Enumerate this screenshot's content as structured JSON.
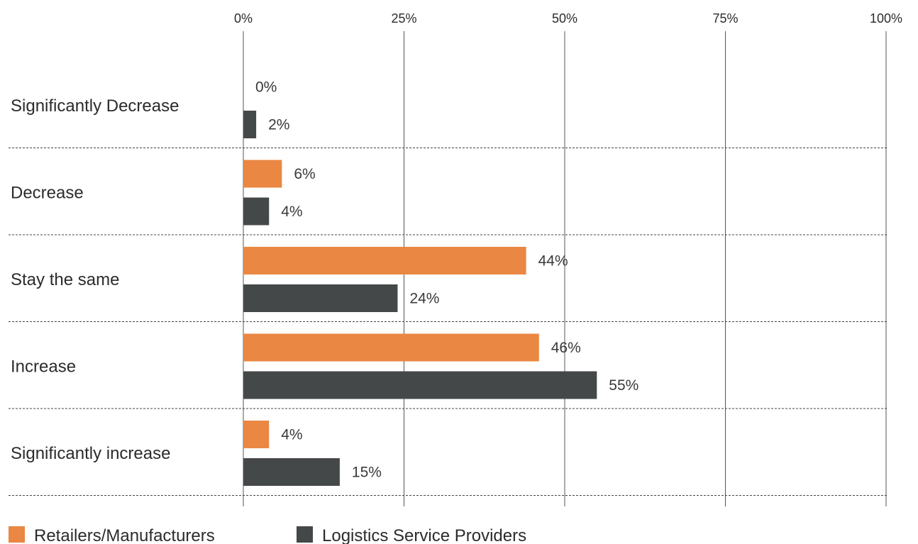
{
  "chart_data": {
    "type": "bar",
    "orientation": "horizontal",
    "title": "",
    "xlabel": "",
    "ylabel": "",
    "xlim": [
      0,
      100
    ],
    "x_ticks": [
      0,
      25,
      50,
      75,
      100
    ],
    "x_tick_labels": [
      "0%",
      "25%",
      "50%",
      "75%",
      "100%"
    ],
    "x_axis_position": "top",
    "grid": "vertical",
    "categories": [
      "Significantly Decrease",
      "Decrease",
      "Stay the same",
      "Increase",
      "Significantly increase"
    ],
    "series": [
      {
        "name": "Retailers/Manufacturers",
        "color": "#E98743",
        "values": [
          0,
          6,
          44,
          46,
          4
        ],
        "labels": [
          "0%",
          "6%",
          "44%",
          "46%",
          "4%"
        ]
      },
      {
        "name": "Logistics Service Providers",
        "color": "#454849",
        "values": [
          2,
          4,
          24,
          55,
          15
        ],
        "labels": [
          "2%",
          "4%",
          "24%",
          "55%",
          "15%"
        ]
      }
    ],
    "legend_position": "bottom-left"
  }
}
